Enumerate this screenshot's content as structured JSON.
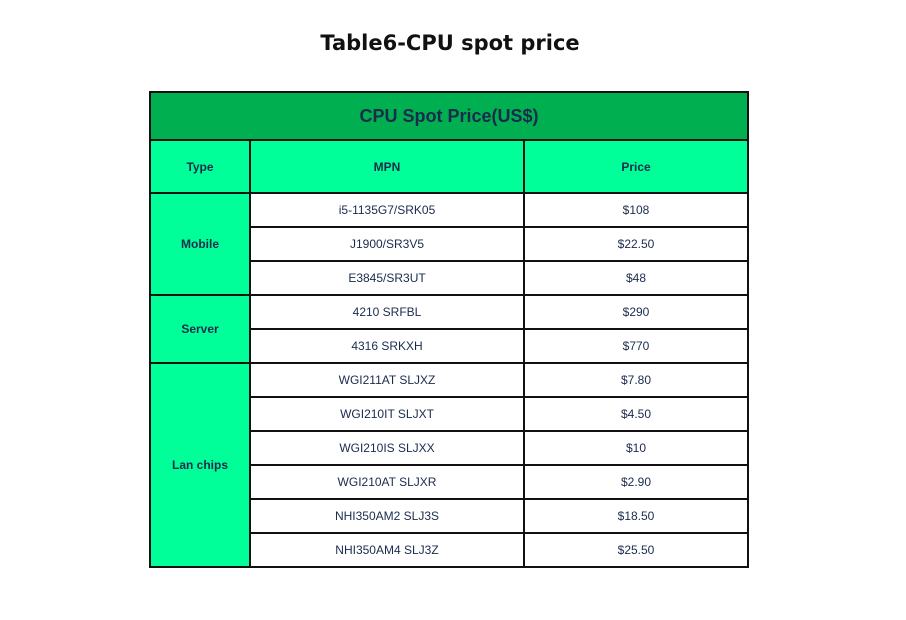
{
  "title": "Table6-CPU spot price",
  "colors": {
    "caption_bg": "#00b050",
    "header_bg": "#00ff99",
    "text": "#1a2b4c"
  },
  "table": {
    "caption": "CPU Spot Price(US$)",
    "headers": [
      "Type",
      "MPN",
      "Price"
    ],
    "groups": [
      {
        "type": "Mobile",
        "rows": [
          {
            "mpn": "i5-1135G7/SRK05",
            "price": "$108"
          },
          {
            "mpn": "J1900/SR3V5",
            "price": "$22.50"
          },
          {
            "mpn": "E3845/SR3UT",
            "price": "$48"
          }
        ]
      },
      {
        "type": "Server",
        "rows": [
          {
            "mpn": "4210 SRFBL",
            "price": "$290"
          },
          {
            "mpn": "4316 SRKXH",
            "price": "$770"
          }
        ]
      },
      {
        "type": "Lan chips",
        "rows": [
          {
            "mpn": "WGI211AT SLJXZ",
            "price": "$7.80"
          },
          {
            "mpn": "WGI210IT SLJXT",
            "price": "$4.50"
          },
          {
            "mpn": "WGI210IS SLJXX",
            "price": "$10"
          },
          {
            "mpn": "WGI210AT SLJXR",
            "price": "$2.90"
          },
          {
            "mpn": "NHI350AM2  SLJ3S",
            "price": "$18.50"
          },
          {
            "mpn": "NHI350AM4 SLJ3Z",
            "price": "$25.50"
          }
        ]
      }
    ]
  }
}
